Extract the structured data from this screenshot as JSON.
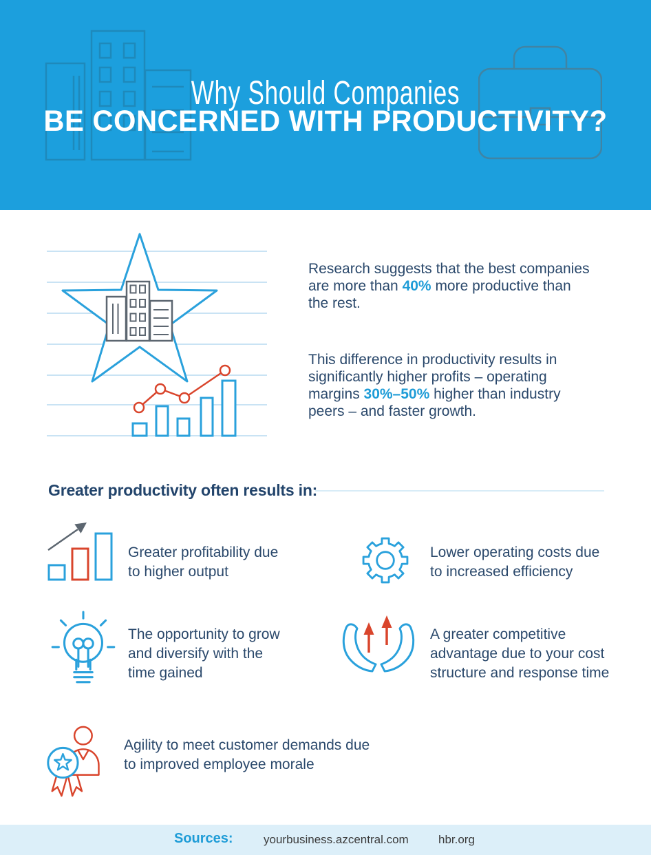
{
  "header": {
    "title_line1": "Why Should Companies",
    "title_line2": "BE CONCERNED WITH PRODUCTIVITY?",
    "background_icons": [
      "buildings-icon",
      "briefcase-icon"
    ]
  },
  "intro": {
    "illustration_icons": [
      "star-icon",
      "buildings-icon",
      "bar-chart-icon",
      "trend-line-icon"
    ],
    "para1_lines": [
      [
        {
          "t": "Research suggests that the best companies"
        }
      ],
      [
        {
          "t": "are more than "
        },
        {
          "t": "40%",
          "hl": true
        },
        {
          "t": " more productive than"
        }
      ],
      [
        {
          "t": "the rest."
        }
      ]
    ],
    "para2_lines": [
      [
        {
          "t": "This difference in productivity results in"
        }
      ],
      [
        {
          "t": "significantly higher profits – operating"
        }
      ],
      [
        {
          "t": "margins "
        },
        {
          "t": "30%–50%",
          "hl": true
        },
        {
          "t": " higher than industry"
        }
      ],
      [
        {
          "t": "peers – and faster growth."
        }
      ]
    ]
  },
  "benefits": {
    "heading": "Greater productivity often results in:",
    "items": [
      {
        "icon": "growth-bar-chart-icon",
        "lines": [
          "Greater profitability due",
          "to higher output"
        ]
      },
      {
        "icon": "gear-icon",
        "lines": [
          "Lower operating costs due",
          "to increased efficiency"
        ]
      },
      {
        "icon": "lightbulb-icon",
        "lines": [
          "The opportunity to grow",
          "and diversify with the",
          "time gained"
        ]
      },
      {
        "icon": "hands-up-arrows-icon",
        "lines": [
          "A greater competitive",
          "advantage due to your cost",
          "structure and response time"
        ]
      },
      {
        "icon": "award-person-icon",
        "lines": [
          "Agility to meet customer demands due",
          "to improved employee morale"
        ]
      }
    ]
  },
  "footer": {
    "label": "Sources:",
    "sources": [
      "yourbusiness.azcentral.com",
      "hbr.org"
    ]
  },
  "colors": {
    "header_bg": "#1C9FDD",
    "accent_blue": "#1E9CD7",
    "icon_blue": "#2AA1DC",
    "navy_text": "#2A486B",
    "red": "#D9452C",
    "gray": "#5C6670",
    "notebook_line_blue": "#C9E3F4",
    "footer_bg": "#DCEFF9"
  }
}
